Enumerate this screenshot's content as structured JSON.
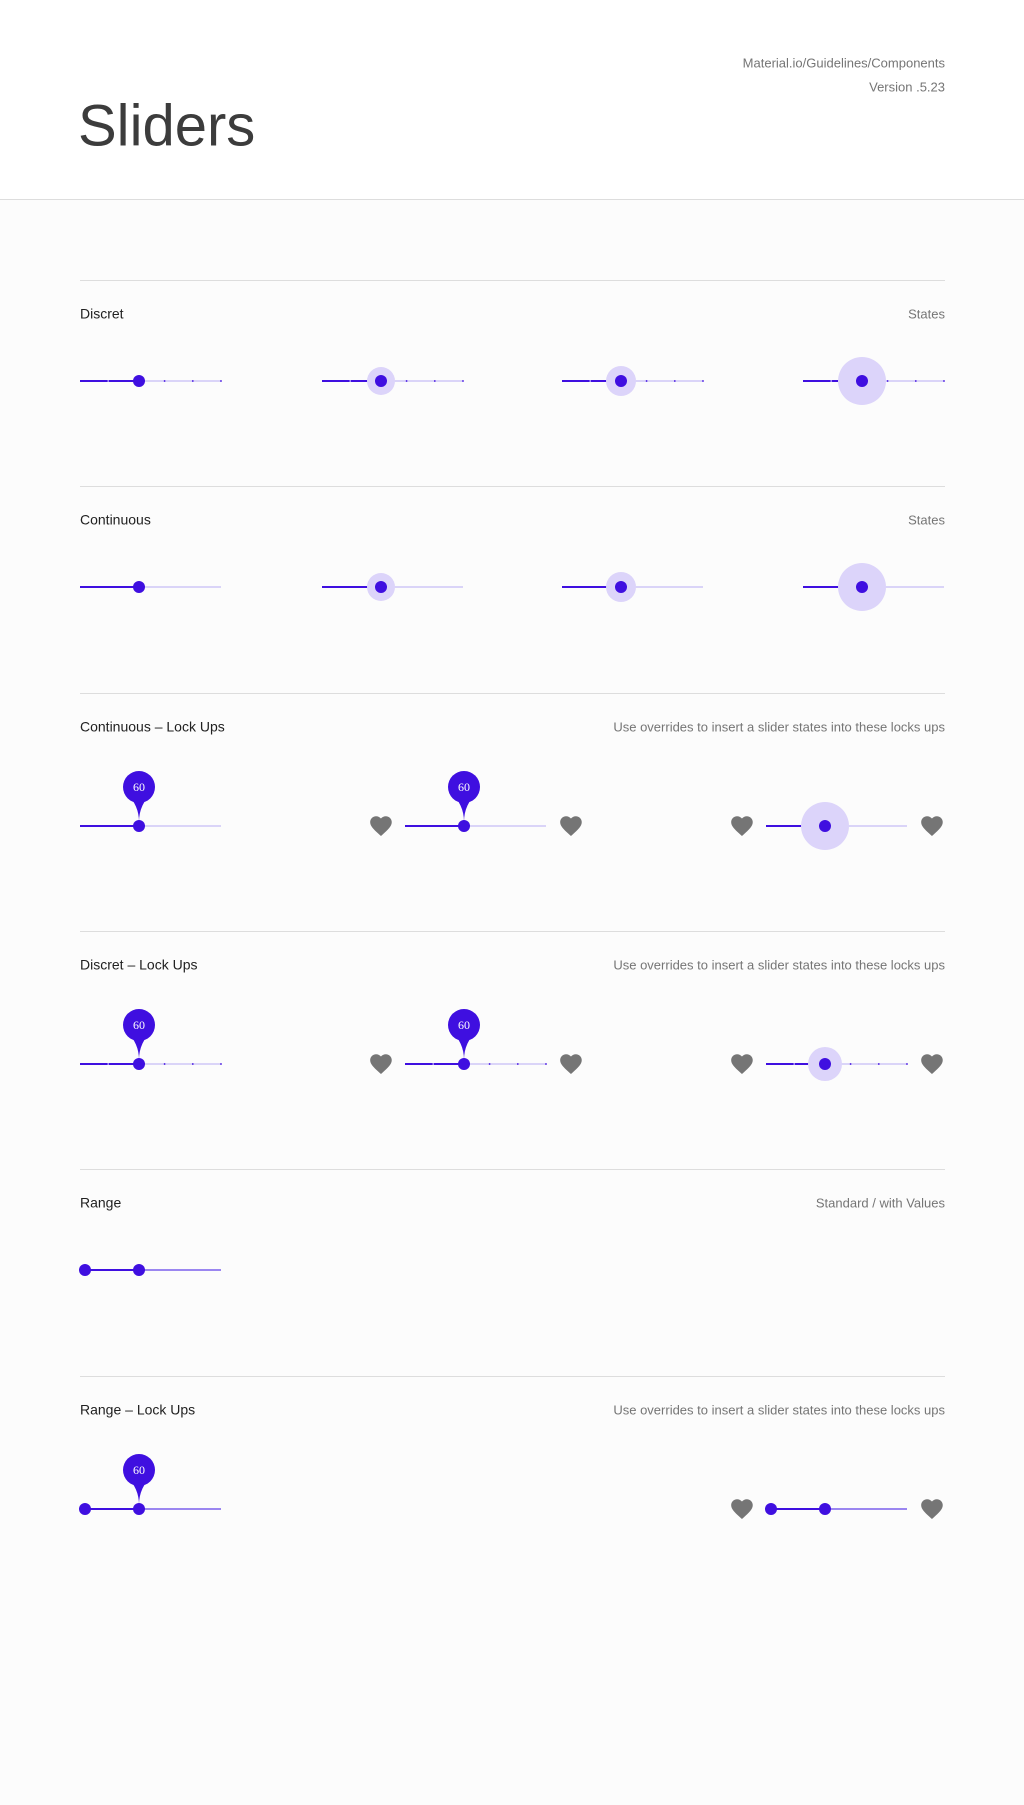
{
  "header": {
    "source": "Material.io/Guidelines/Components",
    "version": "Version .5.23",
    "title": "Sliders"
  },
  "sections": [
    {
      "title": "Discret",
      "note": "States"
    },
    {
      "title": "Continuous",
      "note": "States"
    },
    {
      "title": "Continuous – Lock Ups",
      "note": "Use overrides to insert a slider states into these locks ups",
      "labels": [
        "60",
        "60"
      ]
    },
    {
      "title": "Discret – Lock Ups",
      "note": "Use overrides to insert a slider states into these locks ups",
      "labels": [
        "60",
        "60"
      ]
    },
    {
      "title": "Range",
      "note": "Standard / with Values"
    },
    {
      "title": "Range – Lock Ups",
      "note": "Use overrides to insert a slider states into these locks ups",
      "labels": [
        "60"
      ]
    }
  ]
}
